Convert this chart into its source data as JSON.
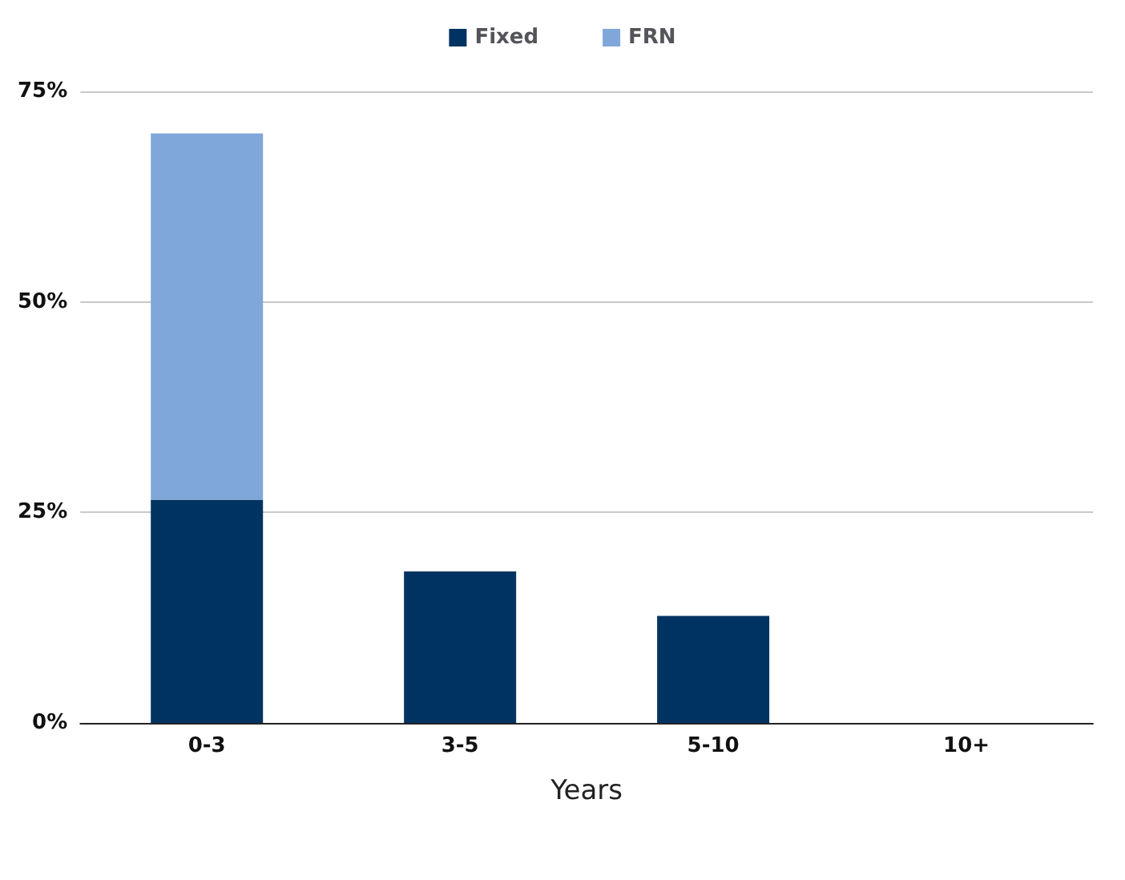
{
  "chart_data": {
    "type": "bar",
    "xlabel": "Years",
    "categories": [
      "0-3",
      "3-5",
      "5-10",
      "10+"
    ],
    "stacked": true,
    "series": [
      {
        "name": "Fixed",
        "color": "#003361",
        "values": [
          26.5,
          18.0,
          12.7,
          0
        ]
      },
      {
        "name": "FRN",
        "color": "#7fa7d9",
        "values": [
          43.5,
          0,
          0,
          0
        ]
      }
    ],
    "ylim": [
      0,
      75
    ],
    "yticks": [
      {
        "value": 0,
        "label": "0%"
      },
      {
        "value": 25,
        "label": "25%"
      },
      {
        "value": 50,
        "label": "50%"
      },
      {
        "value": 75,
        "label": "75%"
      }
    ],
    "grid": "y",
    "legend": "top"
  }
}
